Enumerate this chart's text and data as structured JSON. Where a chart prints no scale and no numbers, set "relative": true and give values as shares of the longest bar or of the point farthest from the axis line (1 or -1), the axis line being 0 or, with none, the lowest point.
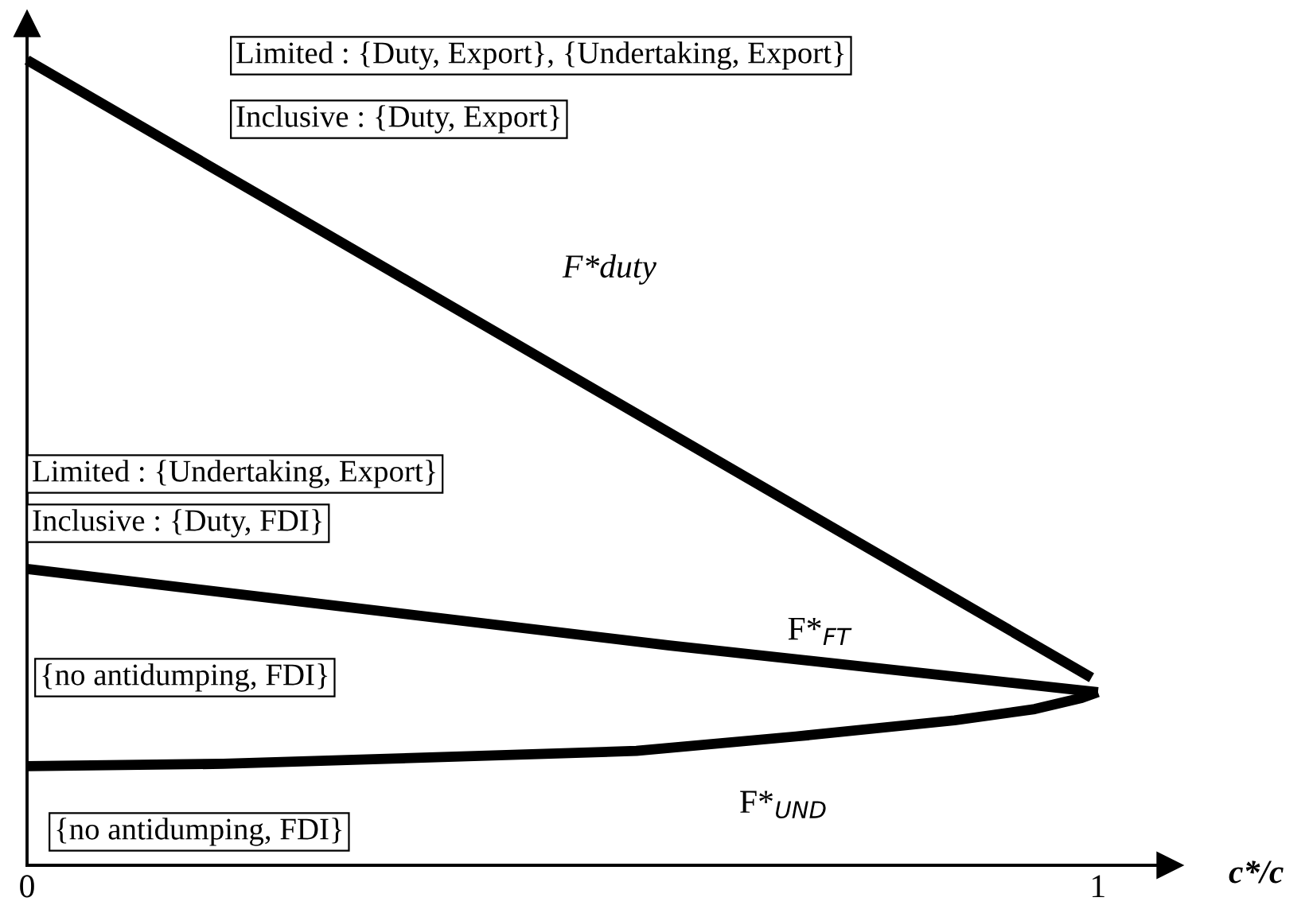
{
  "chart_data": {
    "type": "line",
    "relative": true,
    "xlabel": "c*/c",
    "xlim": [
      0,
      1.067
    ],
    "xticks": [
      0,
      1
    ],
    "legend": false,
    "grid": false,
    "marker": "none",
    "line_style": "solid",
    "series": [
      {
        "name": "F*duty",
        "color": "#000000",
        "x": [
          0,
          0.994
        ],
        "values": [
          1,
          0.233
        ]
      },
      {
        "name": "F*$_{FT}$",
        "color": "#000000",
        "x": [
          0,
          0.6,
          1
        ],
        "values": [
          0.368,
          0.273,
          0.215
        ]
      },
      {
        "name": "F*$_{UND}$",
        "color": "#000000",
        "x": [
          0,
          0.183,
          0.569,
          0.718,
          0.866,
          0.941,
          0.985,
          1
        ],
        "values": [
          0.123,
          0.126,
          0.142,
          0.16,
          0.18,
          0.194,
          0.208,
          0.215
        ]
      }
    ],
    "annotations": [
      "Limited : {Duty, Export}, {Undertaking, Export}",
      "Inclusive : {Duty, Export}",
      "Limited : {Undertaking, Export}",
      "Inclusive : {Duty, FDI}",
      "{no antidumping, FDI}",
      "{no antidumping, FDI}"
    ]
  }
}
